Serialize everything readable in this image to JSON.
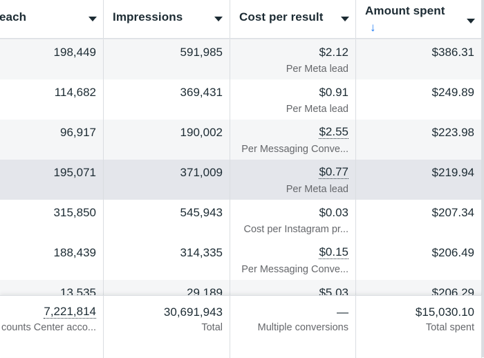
{
  "columns": [
    {
      "label": "each",
      "sortable_menu": true
    },
    {
      "label": "Impressions",
      "sortable_menu": true
    },
    {
      "label": "Cost per result",
      "sortable_menu": true
    },
    {
      "label": "Amount spent",
      "sort_indicator": "↓",
      "sortable_menu": true
    }
  ],
  "rows": [
    {
      "reach": "198,449",
      "impressions": "591,985",
      "cost": "$2.12",
      "cost_type": "Per Meta lead",
      "spent": "$386.31"
    },
    {
      "reach": "114,682",
      "impressions": "369,431",
      "cost": "$0.91",
      "cost_type": "Per Meta lead",
      "spent": "$249.89"
    },
    {
      "reach": "96,917",
      "impressions": "190,002",
      "cost": "$2.55",
      "cost_type": "Per Messaging Conve...",
      "spent": "$223.98"
    },
    {
      "reach": "195,071",
      "impressions": "371,009",
      "cost": "$0.77",
      "cost_type": "Per Meta lead",
      "spent": "$219.94"
    },
    {
      "reach": "315,850",
      "impressions": "545,943",
      "cost": "$0.03",
      "cost_type": "Cost per Instagram pr...",
      "spent": "$207.34"
    },
    {
      "reach": "188,439",
      "impressions": "314,335",
      "cost": "$0.15",
      "cost_type": "Per Messaging Conve...",
      "spent": "$206.49"
    },
    {
      "reach": "13,535",
      "impressions": "29,189",
      "cost": "$5.03",
      "cost_type": "",
      "spent": "$206.29"
    }
  ],
  "totals": {
    "reach": "7,221,814",
    "reach_label": "counts Center acco...",
    "impressions": "30,691,943",
    "impressions_label": "Total",
    "cost": "—",
    "cost_label": "Multiple conversions",
    "spent": "$15,030.10",
    "spent_label": "Total spent"
  },
  "colors": {
    "text": "#1c2b33",
    "secondary_text": "#65676b",
    "accent": "#1877f2",
    "border": "#dadde1",
    "alt_row": "#f5f6f7",
    "hover_row": "#e4e6eb"
  },
  "icons": {
    "menu_caret": "caret-down-icon",
    "sort": "arrow-down-icon"
  }
}
